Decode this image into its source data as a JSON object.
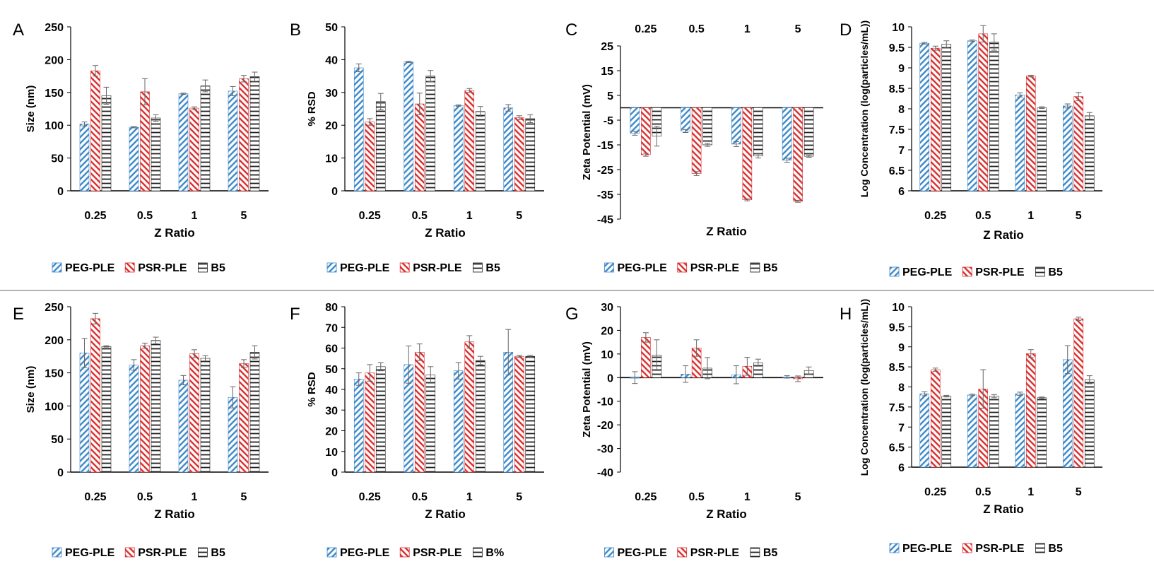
{
  "colors": {
    "peg": "#3a87c8",
    "psr": "#d92b2b",
    "b5": "#222222",
    "axis": "#000000",
    "divider": "#9a9a9a"
  },
  "chart_data": [
    {
      "panel": "A",
      "type": "bar",
      "categories": [
        "0.25",
        "0.5",
        "1",
        "5"
      ],
      "xlabel": "Z Ratio",
      "ylabel": "Size (nm)",
      "ylim": [
        0,
        250
      ],
      "yticks": [
        "0",
        "50",
        "100",
        "150",
        "200",
        "250"
      ],
      "series": [
        {
          "name": "PEG-PLE",
          "values": [
            102,
            97,
            148,
            152
          ],
          "errors": [
            3,
            1,
            1,
            7
          ]
        },
        {
          "name": "PSR-PLE",
          "values": [
            183,
            151,
            126,
            171
          ],
          "errors": [
            8,
            20,
            2,
            5
          ]
        },
        {
          "name": "B5",
          "values": [
            145,
            111,
            160,
            174
          ],
          "errors": [
            13,
            5,
            9,
            7
          ]
        }
      ],
      "legend": "bottom",
      "category_labels_position": "bottom"
    },
    {
      "panel": "B",
      "type": "bar",
      "categories": [
        "0.25",
        "0.5",
        "1",
        "5"
      ],
      "xlabel": "Z Ratio",
      "ylabel": "% RSD",
      "ylim": [
        0,
        50
      ],
      "yticks": [
        "0",
        "10",
        "20",
        "30",
        "40",
        "50"
      ],
      "series": [
        {
          "name": "PEG-PLE",
          "values": [
            37.5,
            39.3,
            26,
            25.3
          ],
          "errors": [
            1.2,
            0.2,
            0.2,
            1
          ]
        },
        {
          "name": "PSR-PLE",
          "values": [
            21,
            26.5,
            30.6,
            22.3
          ],
          "errors": [
            1,
            3.3,
            0.6,
            0.6
          ]
        },
        {
          "name": "B5",
          "values": [
            27.2,
            35,
            24.2,
            22
          ],
          "errors": [
            2.5,
            1.7,
            1.5,
            1.2
          ]
        }
      ],
      "legend": "bottom",
      "category_labels_position": "bottom"
    },
    {
      "panel": "C",
      "type": "bar",
      "categories": [
        "0.25",
        "0.5",
        "1",
        "5"
      ],
      "xlabel": "Z Ratio",
      "ylabel": "Zeta Potential (mV)",
      "ylim": [
        -45,
        25
      ],
      "yticks": [
        "25",
        "15",
        "5",
        "-5",
        "-15",
        "-25",
        "-35",
        "-45"
      ],
      "series": [
        {
          "name": "PEG-PLE",
          "values": [
            -10.3,
            -9.4,
            -14.7,
            -21.2
          ],
          "errors": [
            0.8,
            0.6,
            1,
            0.8
          ]
        },
        {
          "name": "PSR-PLE",
          "values": [
            -19,
            -26.6,
            -37.2,
            -37.8
          ],
          "errors": [
            0.6,
            0.8,
            0.4,
            0.4
          ]
        },
        {
          "name": "B5",
          "values": [
            -11.5,
            -15,
            -19.5,
            -19.6
          ],
          "errors": [
            4,
            0.6,
            0.8,
            0.4
          ]
        }
      ],
      "legend": "bottom",
      "category_labels_position": "top"
    },
    {
      "panel": "D",
      "type": "bar",
      "categories": [
        "0.25",
        "0.5",
        "1",
        "5"
      ],
      "xlabel": "Z Ratio",
      "ylabel": "Log Concentration (log(particles/mL))",
      "ylim": [
        6,
        10
      ],
      "yticks": [
        "6",
        "6.5",
        "7",
        "7.5",
        "8",
        "8.5",
        "9",
        "9.5",
        "10"
      ],
      "series": [
        {
          "name": "PEG-PLE",
          "values": [
            9.6,
            9.66,
            8.34,
            8.07
          ],
          "errors": [
            0.02,
            0.02,
            0.05,
            0.05
          ]
        },
        {
          "name": "PSR-PLE",
          "values": [
            9.48,
            9.83,
            8.8,
            8.3
          ],
          "errors": [
            0.05,
            0.2,
            0.02,
            0.1
          ]
        },
        {
          "name": "B5",
          "values": [
            9.58,
            9.63,
            8.03,
            7.83
          ],
          "errors": [
            0.08,
            0.2,
            0.02,
            0.08
          ]
        }
      ],
      "legend": "bottom",
      "category_labels_position": "bottom"
    },
    {
      "panel": "E",
      "type": "bar",
      "categories": [
        "0.25",
        "0.5",
        "1",
        "5"
      ],
      "xlabel": "Z Ratio",
      "ylabel": "Size (nm)",
      "ylim": [
        0,
        250
      ],
      "yticks": [
        "0",
        "50",
        "100",
        "150",
        "200",
        "250"
      ],
      "series": [
        {
          "name": "PEG-PLE",
          "values": [
            180,
            162,
            139,
            113
          ],
          "errors": [
            22,
            8,
            7,
            16
          ]
        },
        {
          "name": "PSR-PLE",
          "values": [
            232,
            191,
            179,
            164
          ],
          "errors": [
            8,
            4,
            6,
            6
          ]
        },
        {
          "name": "B5",
          "values": [
            190,
            199,
            172,
            181
          ],
          "errors": [
            1,
            5,
            4,
            10
          ]
        }
      ],
      "legend": "bottom",
      "category_labels_position": "bottom"
    },
    {
      "panel": "F",
      "type": "bar",
      "categories": [
        "0.25",
        "0.5",
        "1",
        "5"
      ],
      "xlabel": "Z Ratio",
      "ylabel": "% RSD",
      "ylim": [
        0,
        80
      ],
      "yticks": [
        "0",
        "10",
        "20",
        "30",
        "40",
        "50",
        "60",
        "70",
        "80"
      ],
      "series": [
        {
          "name": "PEG-PLE",
          "values": [
            45,
            52,
            49,
            58
          ],
          "errors": [
            3,
            9,
            4,
            11
          ]
        },
        {
          "name": "PSR-PLE",
          "values": [
            48,
            58,
            63,
            56
          ],
          "errors": [
            4,
            4,
            3,
            0.5
          ]
        },
        {
          "name": "B%",
          "values": [
            51,
            47,
            54,
            56
          ],
          "errors": [
            2,
            4,
            2,
            0.5
          ]
        }
      ],
      "legend": "bottom",
      "category_labels_position": "bottom"
    },
    {
      "panel": "G",
      "type": "bar",
      "categories": [
        "0.25",
        "0.5",
        "1",
        "5"
      ],
      "xlabel": "Z Ratio",
      "ylabel": "Zeta Potential (mV)",
      "ylim": [
        -40,
        30
      ],
      "yticks": [
        "30",
        "20",
        "10",
        "0",
        "-10",
        "-20",
        "-30",
        "-40"
      ],
      "series": [
        {
          "name": "PEG-PLE",
          "values": [
            0,
            1.5,
            1.2,
            0.3
          ],
          "errors": [
            2.5,
            3.5,
            3.8,
            0.5
          ]
        },
        {
          "name": "PSR-PLE",
          "values": [
            17,
            12.5,
            4.8,
            -0.5
          ],
          "errors": [
            2,
            3.5,
            3.8,
            1.2
          ]
        },
        {
          "name": "B5",
          "values": [
            9.5,
            4,
            6.3,
            3
          ],
          "errors": [
            6.5,
            4.5,
            1.5,
            1.5
          ]
        }
      ],
      "legend": "bottom",
      "category_labels_position": "bottom"
    },
    {
      "panel": "H",
      "type": "bar",
      "categories": [
        "0.25",
        "0.5",
        "1",
        "5"
      ],
      "xlabel": "Z Ratio",
      "ylabel": "Log Concentration (log(particles/mL))",
      "ylim": [
        6,
        10
      ],
      "yticks": [
        "6",
        "6.5",
        "7",
        "7.5",
        "8",
        "8.5",
        "9",
        "9.5",
        "10"
      ],
      "series": [
        {
          "name": "PEG-PLE",
          "values": [
            7.83,
            7.8,
            7.83,
            8.68
          ],
          "errors": [
            0.05,
            0.02,
            0.04,
            0.35
          ]
        },
        {
          "name": "PSR-PLE",
          "values": [
            8.43,
            7.95,
            8.83,
            9.7
          ],
          "errors": [
            0.04,
            0.48,
            0.1,
            0.04
          ]
        },
        {
          "name": "B5",
          "values": [
            7.77,
            7.77,
            7.73,
            8.18
          ],
          "errors": [
            0.02,
            0.04,
            0.02,
            0.1
          ]
        }
      ],
      "legend": "bottom",
      "category_labels_position": "bottom"
    }
  ]
}
